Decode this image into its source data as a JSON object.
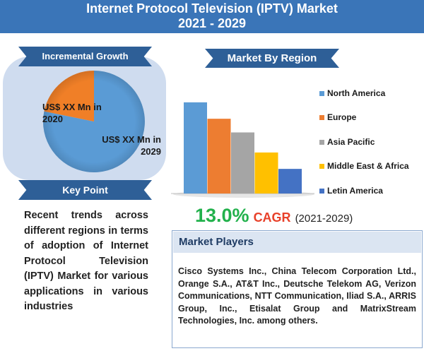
{
  "header": {
    "title_line1": "Internet Protocol Television (IPTV) Market",
    "title_line2": "2021 - 2029"
  },
  "incremental": {
    "label": "Incremental Growth",
    "slice_2020": "US$ XX Mn in 2020",
    "slice_2029": "US$ XX Mn in 2029",
    "colors": {
      "2020": "#f07f27",
      "2029": "#5a9bd5"
    }
  },
  "key_point": {
    "label": "Key Point",
    "text": "Recent trends across different regions in terms of adoption of Internet Protocol Television (IPTV) Market for various applications in various industries"
  },
  "region": {
    "label": "Market By Region"
  },
  "chart_data": {
    "type": "bar",
    "categories": [
      "North America",
      "Europe",
      "Asia Pacific",
      "Middle East & Africa",
      "Letin America"
    ],
    "values": [
      100,
      82,
      67,
      45,
      27
    ],
    "colors": [
      "#5b9bd5",
      "#ed7d31",
      "#a5a5a5",
      "#ffc000",
      "#4472c4"
    ],
    "ylim": [
      0,
      110
    ],
    "legend_position": "right",
    "grid": false
  },
  "cagr": {
    "value": "13.0%",
    "label": "CAGR",
    "years": "(2021-2029)"
  },
  "players": {
    "label": "Market Players",
    "text": "Cisco Systems Inc., China Telecom Corporation Ltd., Orange S.A., AT&T Inc., Deutsche Telekom AG, Verizon Communications, NTT Communication, Iliad S.A., ARRIS Group, Inc., Etisalat Group and MatrixStream Technologies, Inc. among others."
  }
}
